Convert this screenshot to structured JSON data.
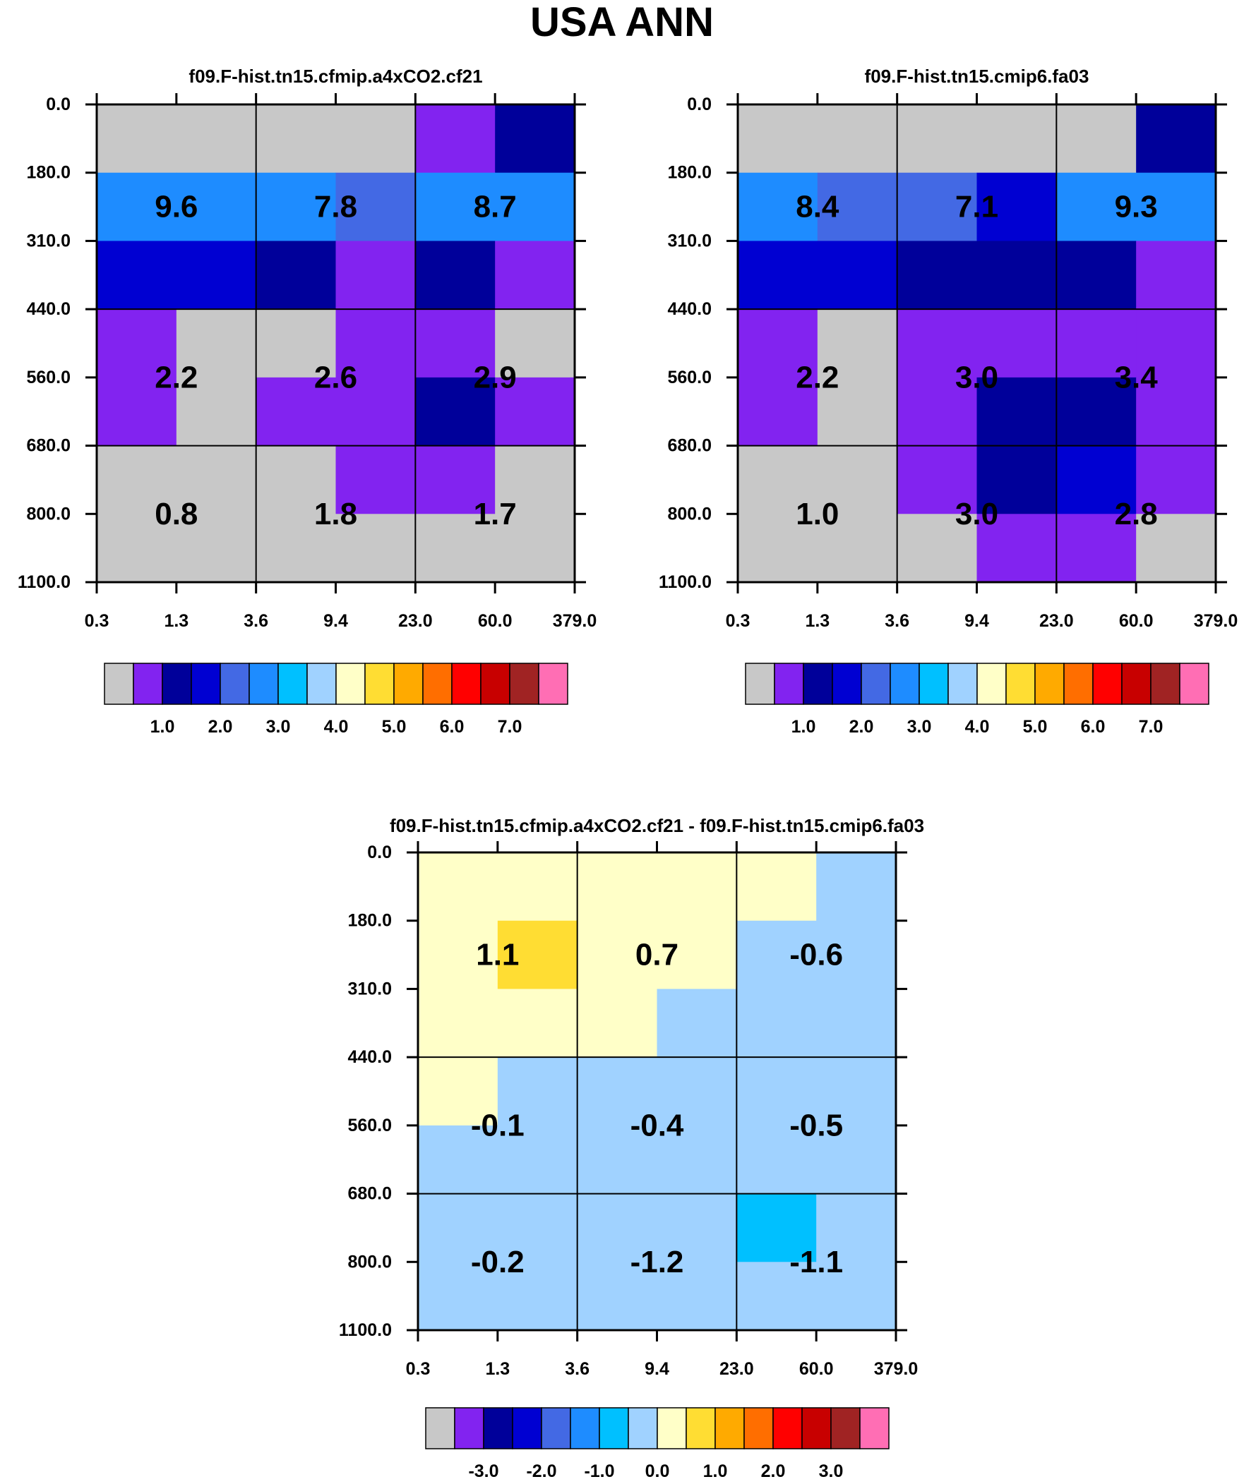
{
  "page": {
    "title": "USA ANN"
  },
  "colors": {
    "main_palette": [
      "#c8c8c8",
      "#8223f0",
      "#00009a",
      "#0000d2",
      "#4369e4",
      "#1e8cff",
      "#00c0ff",
      "#a0d2ff",
      "#ffffc8",
      "#ffdd33",
      "#ffaa00",
      "#ff6e00",
      "#ff0000",
      "#c80000",
      "#a02323",
      "#ff6eb4"
    ],
    "grid_line": "#000000",
    "text": "#000000"
  },
  "chart_data": [
    {
      "type": "heatmap",
      "title": "f09.F-hist.tn15.cfmip.a4xCO2.cf21",
      "x_tick_labels": [
        "0.3",
        "1.3",
        "3.6",
        "9.4",
        "23.0",
        "60.0",
        "379.0"
      ],
      "y_tick_labels": [
        "0.0",
        "180.0",
        "310.0",
        "440.0",
        "560.0",
        "680.0",
        "800.0",
        "1100.0"
      ],
      "cell_values": [
        [
          9.6,
          7.8,
          8.7
        ],
        [
          2.2,
          2.6,
          2.9
        ],
        [
          0.8,
          1.8,
          1.7
        ]
      ],
      "cell_labels": [
        [
          "9.6",
          "7.8",
          "8.7"
        ],
        [
          "2.2",
          "2.6",
          "2.9"
        ],
        [
          "0.8",
          "1.8",
          "1.7"
        ]
      ],
      "color_index_grid": [
        [
          0,
          0,
          0,
          0,
          1,
          2
        ],
        [
          5,
          5,
          5,
          4,
          5,
          5
        ],
        [
          3,
          3,
          2,
          1,
          2,
          1
        ],
        [
          1,
          0,
          0,
          1,
          1,
          0
        ],
        [
          1,
          0,
          1,
          1,
          2,
          1
        ],
        [
          0,
          0,
          0,
          1,
          1,
          0
        ],
        [
          0,
          0,
          0,
          0,
          0,
          0
        ]
      ],
      "colorbar": {
        "tick_labels": [
          "1.0",
          "2.0",
          "3.0",
          "4.0",
          "5.0",
          "6.0",
          "7.0"
        ],
        "levels": [
          0.5,
          1.0,
          1.5,
          2.0,
          2.5,
          3.0,
          3.5,
          4.0,
          4.5,
          5.0,
          5.5,
          6.0,
          6.5,
          7.0,
          7.5
        ]
      }
    },
    {
      "type": "heatmap",
      "title": "f09.F-hist.tn15.cmip6.fa03",
      "x_tick_labels": [
        "0.3",
        "1.3",
        "3.6",
        "9.4",
        "23.0",
        "60.0",
        "379.0"
      ],
      "y_tick_labels": [
        "0.0",
        "180.0",
        "310.0",
        "440.0",
        "560.0",
        "680.0",
        "800.0",
        "1100.0"
      ],
      "cell_values": [
        [
          8.4,
          7.1,
          9.3
        ],
        [
          2.2,
          3.0,
          3.4
        ],
        [
          1.0,
          3.0,
          2.8
        ]
      ],
      "cell_labels": [
        [
          "8.4",
          "7.1",
          "9.3"
        ],
        [
          "2.2",
          "3.0",
          "3.4"
        ],
        [
          "1.0",
          "3.0",
          "2.8"
        ]
      ],
      "color_index_grid": [
        [
          0,
          0,
          0,
          0,
          0,
          2
        ],
        [
          5,
          4,
          4,
          3,
          5,
          5
        ],
        [
          3,
          3,
          2,
          2,
          2,
          1
        ],
        [
          1,
          0,
          1,
          1,
          1,
          1
        ],
        [
          1,
          0,
          1,
          2,
          2,
          1
        ],
        [
          0,
          0,
          1,
          2,
          3,
          1
        ],
        [
          0,
          0,
          0,
          1,
          1,
          0
        ]
      ],
      "colorbar": {
        "tick_labels": [
          "1.0",
          "2.0",
          "3.0",
          "4.0",
          "5.0",
          "6.0",
          "7.0"
        ],
        "levels": [
          0.5,
          1.0,
          1.5,
          2.0,
          2.5,
          3.0,
          3.5,
          4.0,
          4.5,
          5.0,
          5.5,
          6.0,
          6.5,
          7.0,
          7.5
        ]
      }
    },
    {
      "type": "heatmap",
      "title": "f09.F-hist.tn15.cfmip.a4xCO2.cf21 - f09.F-hist.tn15.cmip6.fa03",
      "x_tick_labels": [
        "0.3",
        "1.3",
        "3.6",
        "9.4",
        "23.0",
        "60.0",
        "379.0"
      ],
      "y_tick_labels": [
        "0.0",
        "180.0",
        "310.0",
        "440.0",
        "560.0",
        "680.0",
        "800.0",
        "1100.0"
      ],
      "cell_values": [
        [
          1.1,
          0.7,
          -0.6
        ],
        [
          -0.1,
          -0.4,
          -0.5
        ],
        [
          -0.2,
          -1.2,
          -1.1
        ]
      ],
      "cell_labels": [
        [
          "1.1",
          "0.7",
          "-0.6"
        ],
        [
          "-0.1",
          "-0.4",
          "-0.5"
        ],
        [
          "-0.2",
          "-1.2",
          "-1.1"
        ]
      ],
      "color_index_grid": [
        [
          8,
          8,
          8,
          8,
          8,
          7
        ],
        [
          8,
          9,
          8,
          8,
          7,
          7
        ],
        [
          8,
          8,
          8,
          7,
          7,
          7
        ],
        [
          8,
          7,
          7,
          7,
          7,
          7
        ],
        [
          7,
          7,
          7,
          7,
          7,
          7
        ],
        [
          7,
          7,
          7,
          7,
          6,
          7
        ],
        [
          7,
          7,
          7,
          7,
          7,
          7
        ]
      ],
      "colorbar": {
        "tick_labels": [
          "-3.0",
          "-2.0",
          "-1.0",
          "0.0",
          "1.0",
          "2.0",
          "3.0"
        ],
        "levels": [
          -3.5,
          -3.0,
          -2.5,
          -2.0,
          -1.5,
          -1.0,
          -0.5,
          0.0,
          0.5,
          1.0,
          1.5,
          2.0,
          2.5,
          3.0,
          3.5
        ]
      }
    }
  ]
}
